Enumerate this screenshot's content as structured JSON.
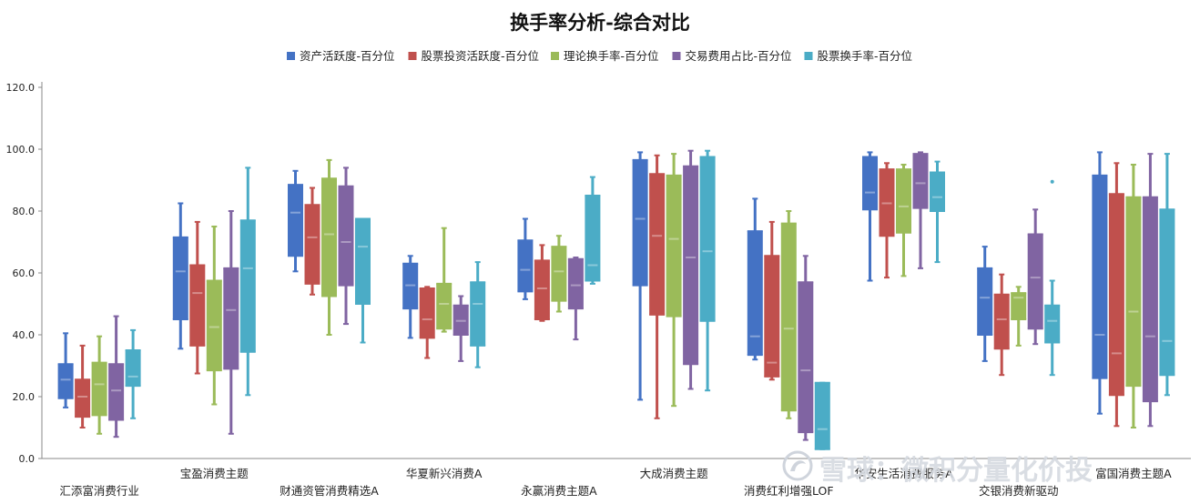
{
  "chart_data": {
    "type": "boxplot",
    "title": "换手率分析-综合对比",
    "xlabel": "",
    "ylabel": "",
    "ylim": [
      0,
      120
    ],
    "yticks": [
      "0.0",
      "20.0",
      "40.0",
      "60.0",
      "80.0",
      "100.0",
      "120.0"
    ],
    "grid": false,
    "legend_position": "top",
    "categories": [
      "汇添富消费行业",
      "宝盈消费主题",
      "财通资管消费精选A",
      "华夏新兴消费A",
      "永赢消费主题A",
      "大成消费主题",
      "消费红利增强LOF",
      "华安生活消费服务A",
      "交银消费新驱动",
      "富国消费主题A"
    ],
    "series": [
      {
        "name": "资产活跃度-百分位",
        "color": "#4472C4",
        "boxes": [
          {
            "min": 16.5,
            "q1": 19.5,
            "median": 25.5,
            "q3": 30.5,
            "max": 40.5
          },
          {
            "min": 35.5,
            "q1": 45,
            "median": 60.5,
            "q3": 71.5,
            "max": 82.5
          },
          {
            "min": 60.5,
            "q1": 65.5,
            "median": 79.5,
            "q3": 88.5,
            "max": 93
          },
          {
            "min": 39,
            "q1": 48.5,
            "median": 56,
            "q3": 63,
            "max": 65.5
          },
          {
            "min": 51.5,
            "q1": 54,
            "median": 61,
            "q3": 70.5,
            "max": 77.5
          },
          {
            "min": 19,
            "q1": 56,
            "median": 77.5,
            "q3": 96.5,
            "max": 99
          },
          {
            "min": 32,
            "q1": 33.5,
            "median": 39.5,
            "q3": 73.5,
            "max": 84
          },
          {
            "min": 57.5,
            "q1": 80.5,
            "median": 86,
            "q3": 97.5,
            "max": 99
          },
          {
            "min": 31.5,
            "q1": 40,
            "median": 52,
            "q3": 61.5,
            "max": 68.5
          },
          {
            "min": 14.5,
            "q1": 26,
            "median": 40,
            "q3": 91.5,
            "max": 99
          }
        ]
      },
      {
        "name": "股票投资活跃度-百分位",
        "color": "#C0504D",
        "boxes": [
          {
            "min": 10,
            "q1": 13.5,
            "median": 20,
            "q3": 25.5,
            "max": 36.5
          },
          {
            "min": 27.5,
            "q1": 36.5,
            "median": 53.5,
            "q3": 62.5,
            "max": 76.5
          },
          {
            "min": 53,
            "q1": 56.5,
            "median": 71.5,
            "q3": 82,
            "max": 87.5
          },
          {
            "min": 32.5,
            "q1": 39,
            "median": 45,
            "q3": 55,
            "max": 55.5
          },
          {
            "min": 44.5,
            "q1": 45,
            "median": 55,
            "q3": 64,
            "max": 69
          },
          {
            "min": 13,
            "q1": 46.5,
            "median": 72,
            "q3": 92,
            "max": 98
          },
          {
            "min": 25.5,
            "q1": 26.5,
            "median": 31,
            "q3": 65.5,
            "max": 76.5
          },
          {
            "min": 58.5,
            "q1": 72,
            "median": 82.5,
            "q3": 93.5,
            "max": 95.5
          },
          {
            "min": 27,
            "q1": 35.5,
            "median": 45,
            "q3": 53,
            "max": 59.5
          },
          {
            "min": 10.5,
            "q1": 20.5,
            "median": 34,
            "q3": 85.5,
            "max": 95.5
          }
        ]
      },
      {
        "name": "理论换手率-百分位",
        "color": "#9BBB59",
        "boxes": [
          {
            "min": 8,
            "q1": 14,
            "median": 24,
            "q3": 31,
            "max": 39.5
          },
          {
            "min": 17.5,
            "q1": 28.5,
            "median": 42.5,
            "q3": 57.5,
            "max": 75
          },
          {
            "min": 40,
            "q1": 52.5,
            "median": 72.5,
            "q3": 90.5,
            "max": 96.5
          },
          {
            "min": 41,
            "q1": 42,
            "median": 50,
            "q3": 56.5,
            "max": 74.5
          },
          {
            "min": 47.5,
            "q1": 51,
            "median": 60.5,
            "q3": 68.5,
            "max": 72
          },
          {
            "min": 17,
            "q1": 46,
            "median": 71,
            "q3": 91.5,
            "max": 98.5
          },
          {
            "min": 13,
            "q1": 15.5,
            "median": 42,
            "q3": 76,
            "max": 80
          },
          {
            "min": 59,
            "q1": 73,
            "median": 81.5,
            "q3": 93.5,
            "max": 95
          },
          {
            "min": 36.5,
            "q1": 45,
            "median": 52,
            "q3": 53.5,
            "max": 55.5
          },
          {
            "min": 10,
            "q1": 23.5,
            "median": 47.5,
            "q3": 84.5,
            "max": 95
          }
        ]
      },
      {
        "name": "交易费用占比-百分位",
        "color": "#8064A2",
        "boxes": [
          {
            "min": 7,
            "q1": 12.5,
            "median": 22,
            "q3": 30.5,
            "max": 46
          },
          {
            "min": 8,
            "q1": 29,
            "median": 48,
            "q3": 61.5,
            "max": 80
          },
          {
            "min": 43.5,
            "q1": 56,
            "median": 70,
            "q3": 88,
            "max": 94
          },
          {
            "min": 31.5,
            "q1": 40,
            "median": 44.5,
            "q3": 49.5,
            "max": 52.5
          },
          {
            "min": 38.5,
            "q1": 48.5,
            "median": 56,
            "q3": 64.5,
            "max": 65
          },
          {
            "min": 22.5,
            "q1": 30.5,
            "median": 65,
            "q3": 94.5,
            "max": 99.5
          },
          {
            "min": 6,
            "q1": 8.5,
            "median": 28.5,
            "q3": 57,
            "max": 65.5
          },
          {
            "min": 61.5,
            "q1": 81,
            "median": 89,
            "q3": 98.5,
            "max": 99
          },
          {
            "min": 37,
            "q1": 42,
            "median": 58.5,
            "q3": 72.5,
            "max": 80.5
          },
          {
            "min": 10.5,
            "q1": 18.5,
            "median": 39.5,
            "q3": 84.5,
            "max": 98.5
          }
        ]
      },
      {
        "name": "股票换手率-百分位",
        "color": "#4BACC6",
        "boxes": [
          {
            "min": 13,
            "q1": 23.5,
            "median": 26.5,
            "q3": 35,
            "max": 41.5
          },
          {
            "min": 20.5,
            "q1": 34.5,
            "median": 61.5,
            "q3": 77,
            "max": 94
          },
          {
            "min": 37.5,
            "q1": 50,
            "median": 68.5,
            "q3": 77.5,
            "max": 77.5
          },
          {
            "min": 29.5,
            "q1": 36.5,
            "median": 50,
            "q3": 57,
            "max": 63.5
          },
          {
            "min": 56.5,
            "q1": 57.5,
            "median": 62.5,
            "q3": 85,
            "max": 91
          },
          {
            "min": 22,
            "q1": 44.5,
            "median": 67,
            "q3": 97.5,
            "max": 99.5
          },
          {
            "min": 3,
            "q1": 3,
            "median": 9.5,
            "q3": 24.5,
            "max": 24.5
          },
          {
            "min": 63.5,
            "q1": 80,
            "median": 84.5,
            "q3": 92.5,
            "max": 96
          },
          {
            "min": 27,
            "q1": 37.5,
            "median": 44.5,
            "q3": 49.5,
            "max": 57.5,
            "outliers": [
              89.5
            ]
          },
          {
            "min": 20.5,
            "q1": 27,
            "median": 38,
            "q3": 80.5,
            "max": 98.5
          }
        ]
      }
    ]
  },
  "watermark": "雪球：微积分量化价投"
}
